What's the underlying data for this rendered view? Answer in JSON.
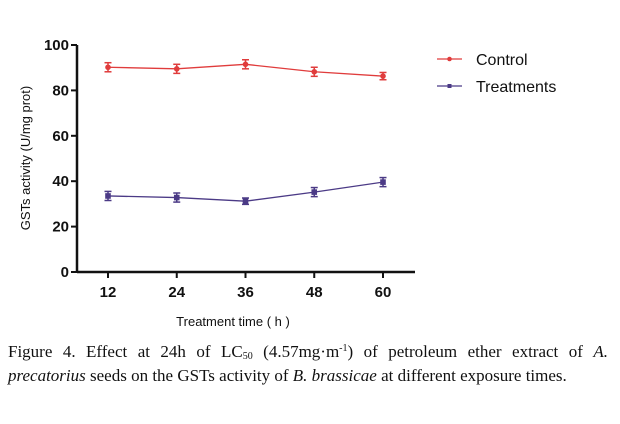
{
  "chart_data": {
    "type": "line",
    "title": "",
    "xlabel": "Treatment time ( h )",
    "ylabel": "GSTs activity (U/mg prot)",
    "x": [
      12,
      24,
      36,
      48,
      60
    ],
    "ylim": [
      0,
      100
    ],
    "yticks": [
      0,
      20,
      40,
      60,
      80,
      100
    ],
    "grid": false,
    "legend_placement": "top-right",
    "series": [
      {
        "name": "Control",
        "color": "#e03c3c",
        "marker": "circle",
        "values": [
          90.2,
          89.5,
          91.5,
          88.2,
          86.3
        ],
        "errors": [
          2.0,
          2.0,
          2.0,
          2.0,
          1.6
        ]
      },
      {
        "name": "Treatments",
        "color": "#4b3a86",
        "marker": "square",
        "values": [
          33.5,
          32.8,
          31.2,
          35.2,
          39.6
        ],
        "errors": [
          2.0,
          2.0,
          1.4,
          2.0,
          2.0
        ]
      }
    ]
  },
  "caption": {
    "prefix": "Figure 4. Effect at 24h of LC",
    "lc_sub": "50",
    "conc": " (4.57mg·m",
    "conc_sup": "-1",
    "mid": ") of petroleum ether extract of ",
    "species1": "A. precatorius",
    "mid2": " seeds on the GSTs activity of ",
    "species2": "B. brassicae",
    "suffix": " at different exposure times."
  }
}
